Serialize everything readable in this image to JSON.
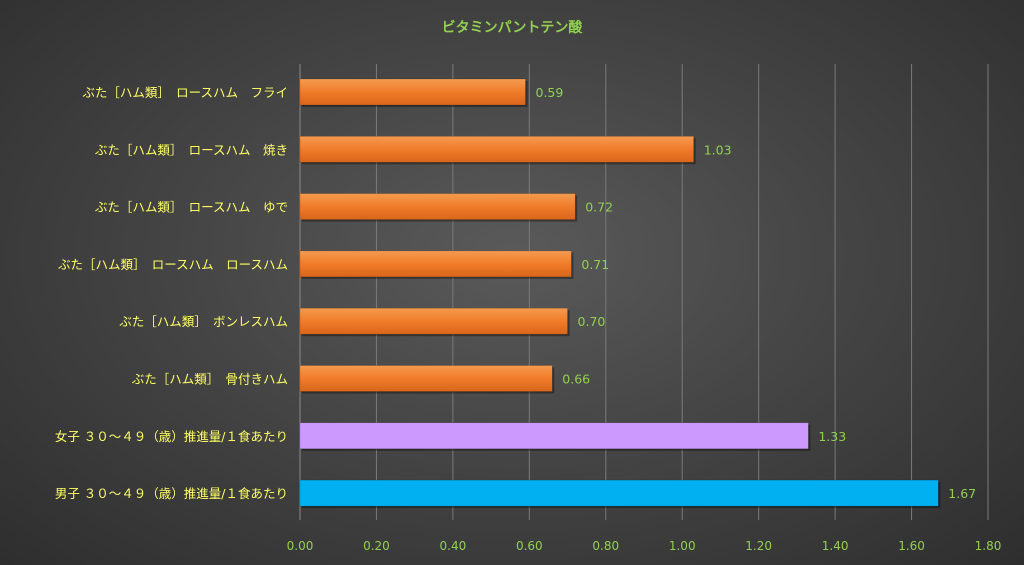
{
  "chart_data": {
    "type": "bar",
    "orientation": "horizontal",
    "title": "ビタミンパントテン酸",
    "xlabel": "",
    "ylabel": "",
    "xlim": [
      0,
      1.8
    ],
    "x_ticks": [
      "0.00",
      "0.20",
      "0.40",
      "0.60",
      "0.80",
      "1.00",
      "1.20",
      "1.40",
      "1.60",
      "1.80"
    ],
    "grid": "vertical",
    "categories": [
      "ぶた［ハム類］　ロースハム　フライ",
      "ぶた［ハム類］　ロースハム　焼き",
      "ぶた［ハム類］　ロースハム　ゆで",
      "ぶた［ハム類］　ロースハム　ロースハム",
      "ぶた［ハム類］　ボンレスハム",
      "ぶた［ハム類］　骨付きハム",
      "女子 ３０～４９（歳）推進量/１食あたり",
      "男子 ３０～４９（歳）推進量/１食あたり"
    ],
    "values": [
      0.59,
      1.03,
      0.72,
      0.71,
      0.7,
      0.66,
      1.33,
      1.67
    ],
    "value_labels": [
      "0.59",
      "1.03",
      "0.72",
      "0.71",
      "0.70",
      "0.66",
      "1.33",
      "1.67"
    ],
    "bar_colors": [
      "#f07c2a",
      "#f07c2a",
      "#f07c2a",
      "#f07c2a",
      "#f07c2a",
      "#f07c2a",
      "#cc99ff",
      "#00b0f0"
    ],
    "colors": {
      "title": "#92d050",
      "category_label": "#ffff66",
      "tick_label": "#92d050",
      "value_label": "#92d050",
      "grid": "#7a7a7a"
    }
  }
}
